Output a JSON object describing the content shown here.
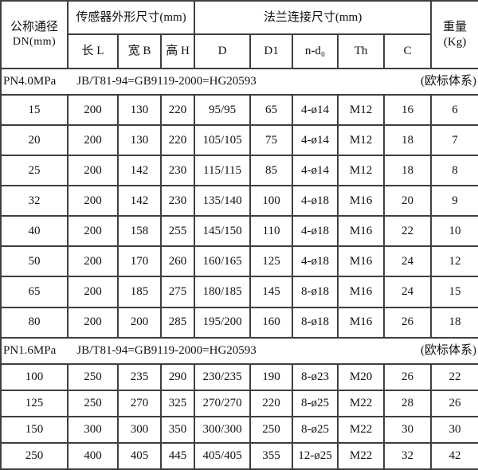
{
  "table": {
    "header": {
      "dn_label": "公称通径",
      "dn_sub": "DN(mm)",
      "sensor_group": "传感器外形尺寸(mm)",
      "sensor_cols": [
        "长 L",
        "宽 B",
        "高 H"
      ],
      "flange_group": "法兰连接尺寸(mm)",
      "flange_cols": [
        "D",
        "D1",
        "n-d₀",
        "Th",
        "C"
      ],
      "weight_label": "重量",
      "weight_sub": "(Kg)"
    },
    "sections": [
      {
        "pressure": "PN4.0MPa",
        "standard": "JB/T81-94=GB9119-2000=HG20593",
        "note": "(欧标体系)",
        "row_class": "r1",
        "rows": [
          [
            "15",
            "200",
            "130",
            "220",
            "95/95",
            "65",
            "4-ø14",
            "M12",
            "16",
            "6"
          ],
          [
            "20",
            "200",
            "130",
            "220",
            "105/105",
            "75",
            "4-ø14",
            "M12",
            "18",
            "7"
          ],
          [
            "25",
            "200",
            "142",
            "230",
            "115/115",
            "85",
            "4-ø14",
            "M12",
            "18",
            "8"
          ],
          [
            "32",
            "200",
            "142",
            "230",
            "135/140",
            "100",
            "4-ø18",
            "M16",
            "20",
            "9"
          ],
          [
            "40",
            "200",
            "158",
            "255",
            "145/150",
            "110",
            "4-ø18",
            "M16",
            "22",
            "10"
          ],
          [
            "50",
            "200",
            "170",
            "260",
            "160/165",
            "125",
            "4-ø18",
            "M16",
            "24",
            "12"
          ],
          [
            "65",
            "200",
            "185",
            "275",
            "180/185",
            "145",
            "8-ø18",
            "M16",
            "24",
            "15"
          ],
          [
            "80",
            "200",
            "200",
            "285",
            "195/200",
            "160",
            "8-ø18",
            "M16",
            "26",
            "18"
          ]
        ]
      },
      {
        "pressure": "PN1.6MPa",
        "standard": "JB/T81-94=GB9119-2000=HG20593",
        "note": "(欧标体系)",
        "row_class": "r2",
        "rows": [
          [
            "100",
            "250",
            "235",
            "290",
            "230/235",
            "190",
            "8-ø23",
            "M20",
            "26",
            "22"
          ],
          [
            "125",
            "250",
            "270",
            "325",
            "270/270",
            "220",
            "8-ø25",
            "M22",
            "28",
            "26"
          ],
          [
            "150",
            "300",
            "300",
            "350",
            "300/300",
            "250",
            "8-ø25",
            "M22",
            "30",
            "30"
          ],
          [
            "250",
            "400",
            "405",
            "445",
            "405/405",
            "355",
            "12-ø25",
            "M22",
            "32",
            "42"
          ]
        ]
      }
    ]
  }
}
